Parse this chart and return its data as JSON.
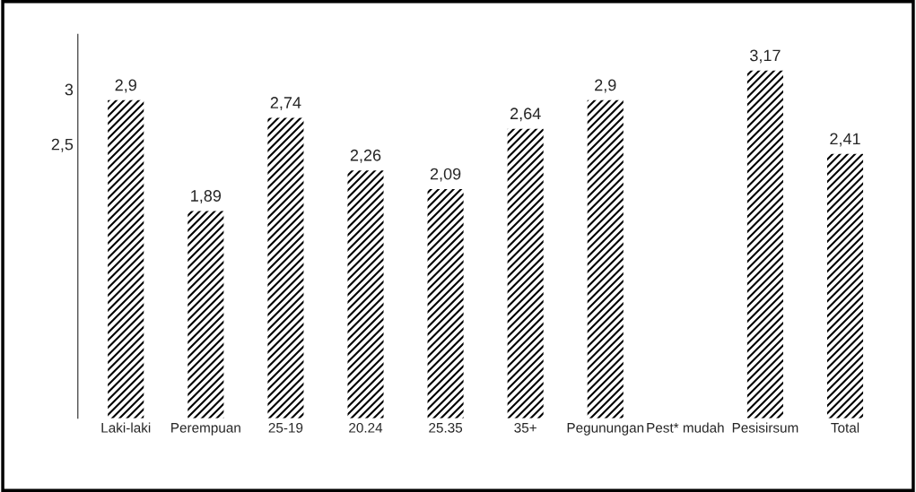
{
  "chart_data": {
    "type": "bar",
    "categories": [
      "Laki-laki",
      "Perempuan",
      "25-19",
      "20.24",
      "25.35",
      "35+",
      "Pegunungan",
      "Pest* mudah",
      "Pesisirsum",
      "Total"
    ],
    "values": [
      2.9,
      1.89,
      2.74,
      2.26,
      2.09,
      2.64,
      2.9,
      null,
      3.17,
      2.41
    ],
    "value_labels": [
      "2,9",
      "1,89",
      "2,74",
      "2,26",
      "2,09",
      "2,64",
      "2,9",
      null,
      "3,17",
      "2,41"
    ],
    "color": "#000000",
    "ylim": [
      0,
      3.5
    ],
    "yticks": [
      {
        "value": 2.5,
        "label": "2,5"
      },
      3
    ],
    "grid": false
  }
}
